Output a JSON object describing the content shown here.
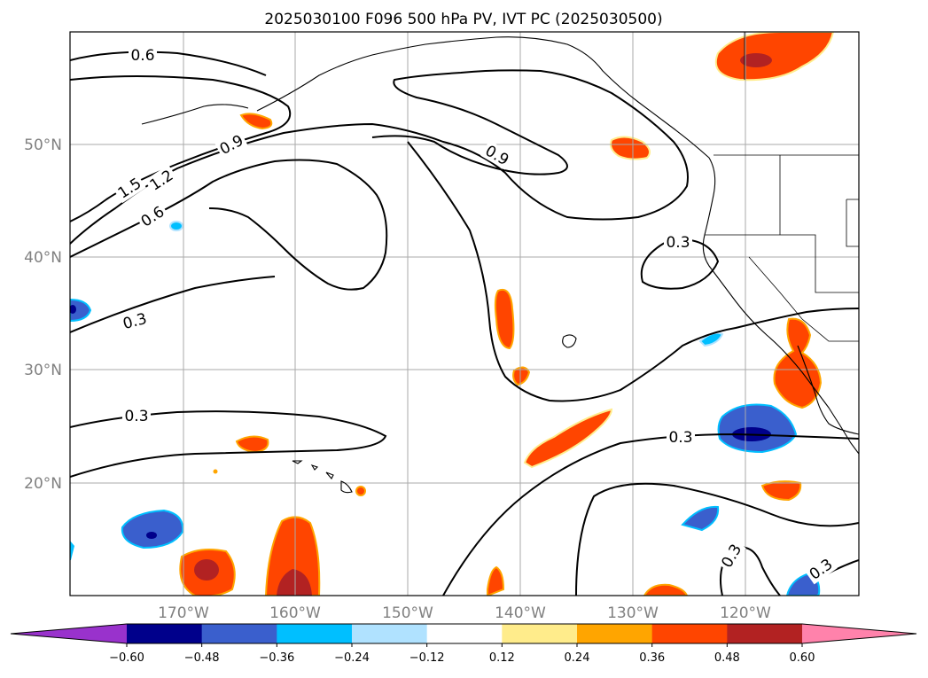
{
  "title": "2025030100 F096 500 hPa PV, IVT PC (2025030500)",
  "map": {
    "lat_labels": [
      "50°N",
      "40°N",
      "30°N",
      "20°N"
    ],
    "lon_labels": [
      "170°W",
      "160°W",
      "150°W",
      "140°W",
      "130°W",
      "120°W"
    ],
    "pv_contour_labels": [
      "0.6",
      "0.9",
      "1.5",
      "1.2",
      "0.6",
      "0.9",
      "0.3",
      "0.3",
      "0.3",
      "0.3",
      "0.3",
      "0.3"
    ]
  },
  "colorbar": {
    "ticks": [
      "−0.60",
      "−0.48",
      "−0.36",
      "−0.24",
      "−0.12",
      "0.12",
      "0.24",
      "0.36",
      "0.48",
      "0.60"
    ],
    "colors": [
      "#9932cc",
      "#00008b",
      "#3a5fcd",
      "#00bfff",
      "#b0e2ff",
      "#ffffff",
      "#ffec8b",
      "#ffa500",
      "#ff4500",
      "#b22222",
      "#ff82ab"
    ]
  }
}
